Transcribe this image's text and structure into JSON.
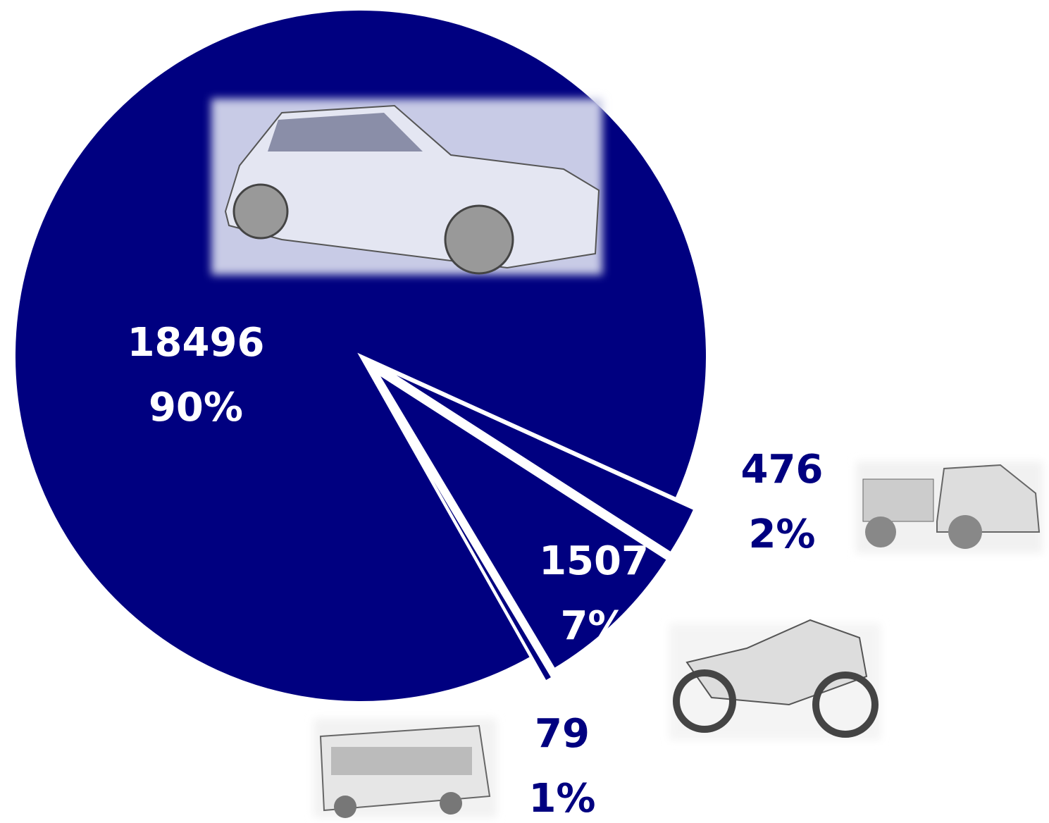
{
  "chart_data": {
    "type": "pie",
    "values": [
      18496,
      476,
      1507,
      79
    ],
    "shares": [
      90,
      2,
      7,
      1
    ],
    "share_labels": [
      "90%",
      "2%",
      "7%",
      "1%"
    ],
    "color": "#000080"
  }
}
